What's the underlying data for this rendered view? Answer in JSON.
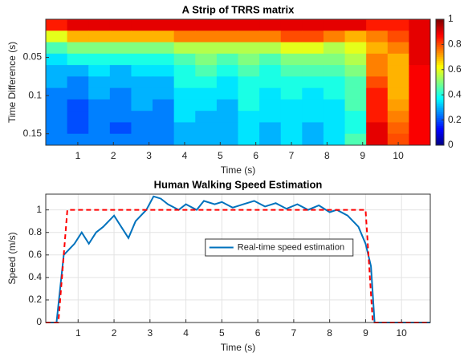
{
  "chart_data": [
    {
      "type": "heatmap",
      "title": "A Strip of TRRS matrix",
      "xlabel": "Time (s)",
      "ylabel": "Time Difference (s)",
      "xlim": [
        0.1,
        10.9
      ],
      "xticks": [
        1,
        2,
        3,
        4,
        5,
        6,
        7,
        8,
        9,
        10
      ],
      "ylim": [
        0,
        0.165
      ],
      "yticks": [
        0.05,
        0.1,
        0.15
      ],
      "y_reversed": true,
      "colormap": "jet",
      "clim": [
        0,
        1
      ],
      "colorbar_ticks": [
        0,
        0.2,
        0.4,
        0.6,
        0.8,
        1
      ],
      "x": [
        0.4,
        1.0,
        1.6,
        2.2,
        2.8,
        3.4,
        4.0,
        4.6,
        5.2,
        5.8,
        6.4,
        7.0,
        7.6,
        8.2,
        8.8,
        9.4,
        10.0,
        10.6
      ],
      "y": [
        0.0075,
        0.0225,
        0.0375,
        0.0525,
        0.0675,
        0.0825,
        0.0975,
        0.1125,
        0.1275,
        0.1425,
        0.1575
      ],
      "z": [
        [
          0.85,
          0.9,
          0.9,
          0.9,
          0.9,
          0.9,
          0.9,
          0.9,
          0.9,
          0.9,
          0.9,
          0.9,
          0.9,
          0.9,
          0.9,
          0.85,
          0.85,
          0.9
        ],
        [
          0.6,
          0.7,
          0.7,
          0.7,
          0.7,
          0.7,
          0.75,
          0.75,
          0.75,
          0.75,
          0.75,
          0.8,
          0.8,
          0.75,
          0.7,
          0.75,
          0.8,
          0.9
        ],
        [
          0.45,
          0.5,
          0.5,
          0.5,
          0.5,
          0.5,
          0.55,
          0.55,
          0.55,
          0.55,
          0.55,
          0.6,
          0.6,
          0.55,
          0.6,
          0.7,
          0.75,
          0.9
        ],
        [
          0.35,
          0.4,
          0.4,
          0.4,
          0.4,
          0.4,
          0.45,
          0.5,
          0.45,
          0.5,
          0.45,
          0.5,
          0.5,
          0.5,
          0.55,
          0.75,
          0.7,
          0.9
        ],
        [
          0.3,
          0.3,
          0.35,
          0.3,
          0.35,
          0.35,
          0.4,
          0.45,
          0.4,
          0.45,
          0.4,
          0.45,
          0.45,
          0.45,
          0.5,
          0.75,
          0.7,
          0.88
        ],
        [
          0.3,
          0.25,
          0.3,
          0.3,
          0.3,
          0.3,
          0.4,
          0.4,
          0.35,
          0.4,
          0.4,
          0.4,
          0.4,
          0.4,
          0.45,
          0.8,
          0.7,
          0.88
        ],
        [
          0.25,
          0.25,
          0.3,
          0.25,
          0.3,
          0.3,
          0.35,
          0.35,
          0.35,
          0.4,
          0.35,
          0.4,
          0.35,
          0.4,
          0.45,
          0.85,
          0.7,
          0.88
        ],
        [
          0.25,
          0.2,
          0.25,
          0.25,
          0.3,
          0.25,
          0.35,
          0.35,
          0.3,
          0.4,
          0.35,
          0.35,
          0.35,
          0.35,
          0.45,
          0.85,
          0.72,
          0.88
        ],
        [
          0.25,
          0.2,
          0.25,
          0.25,
          0.25,
          0.25,
          0.35,
          0.3,
          0.3,
          0.35,
          0.35,
          0.35,
          0.35,
          0.35,
          0.4,
          0.85,
          0.75,
          0.88
        ],
        [
          0.25,
          0.2,
          0.25,
          0.2,
          0.25,
          0.25,
          0.3,
          0.3,
          0.3,
          0.35,
          0.3,
          0.35,
          0.3,
          0.35,
          0.4,
          0.9,
          0.78,
          0.88
        ],
        [
          0.25,
          0.25,
          0.25,
          0.25,
          0.25,
          0.25,
          0.3,
          0.3,
          0.3,
          0.35,
          0.3,
          0.35,
          0.3,
          0.35,
          0.45,
          0.9,
          0.8,
          0.88
        ]
      ]
    },
    {
      "type": "line",
      "title": "Human Walking Speed Estimation",
      "xlabel": "Time (s)",
      "ylabel": "Speed (m/s)",
      "xlim": [
        0.1,
        10.8
      ],
      "xticks": [
        1,
        2,
        3,
        4,
        5,
        6,
        7,
        8,
        9,
        10
      ],
      "ylim": [
        0,
        1.14
      ],
      "yticks": [
        0,
        0.2,
        0.4,
        0.6,
        0.8,
        1
      ],
      "grid": true,
      "legend_loc": "center",
      "series": [
        {
          "name": "Real-time speed estimation",
          "color": "#0072bd",
          "dash": "solid",
          "x": [
            0.1,
            0.4,
            0.6,
            0.75,
            0.9,
            1.1,
            1.3,
            1.5,
            1.7,
            2.0,
            2.2,
            2.4,
            2.6,
            2.9,
            3.1,
            3.3,
            3.5,
            3.8,
            4.0,
            4.3,
            4.5,
            4.8,
            5.0,
            5.3,
            5.6,
            5.9,
            6.2,
            6.5,
            6.8,
            7.1,
            7.4,
            7.7,
            8.0,
            8.2,
            8.5,
            8.8,
            9.0,
            9.15,
            9.25,
            10.8
          ],
          "values": [
            0,
            0,
            0.6,
            0.65,
            0.7,
            0.8,
            0.7,
            0.8,
            0.85,
            0.95,
            0.85,
            0.75,
            0.9,
            1.0,
            1.12,
            1.1,
            1.05,
            1.0,
            1.05,
            1.0,
            1.08,
            1.05,
            1.07,
            1.02,
            1.05,
            1.08,
            1.03,
            1.06,
            1.01,
            1.05,
            1.0,
            1.04,
            0.98,
            1.0,
            0.95,
            0.85,
            0.7,
            0.5,
            0,
            0
          ]
        },
        {
          "color": "#ff0000",
          "dash": "dashed",
          "x": [
            0.1,
            0.45,
            0.7,
            9.0,
            9.2,
            10.8
          ],
          "values": [
            0,
            0,
            1,
            1,
            0,
            0
          ]
        }
      ]
    }
  ]
}
